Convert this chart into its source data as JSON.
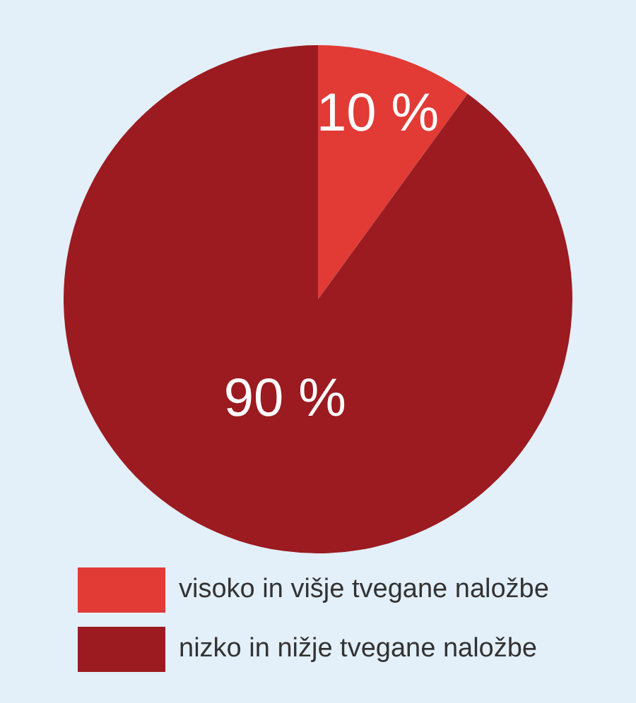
{
  "chart_data": {
    "type": "pie",
    "categories": [
      "visoko in višje tvegane naložbe",
      "nizko in nižje tvegane naložbe"
    ],
    "values": [
      10,
      90
    ],
    "colors": [
      "#e23a35",
      "#9b1b20"
    ],
    "value_labels": [
      "10 %",
      "90 %"
    ],
    "legend": "bottom"
  }
}
